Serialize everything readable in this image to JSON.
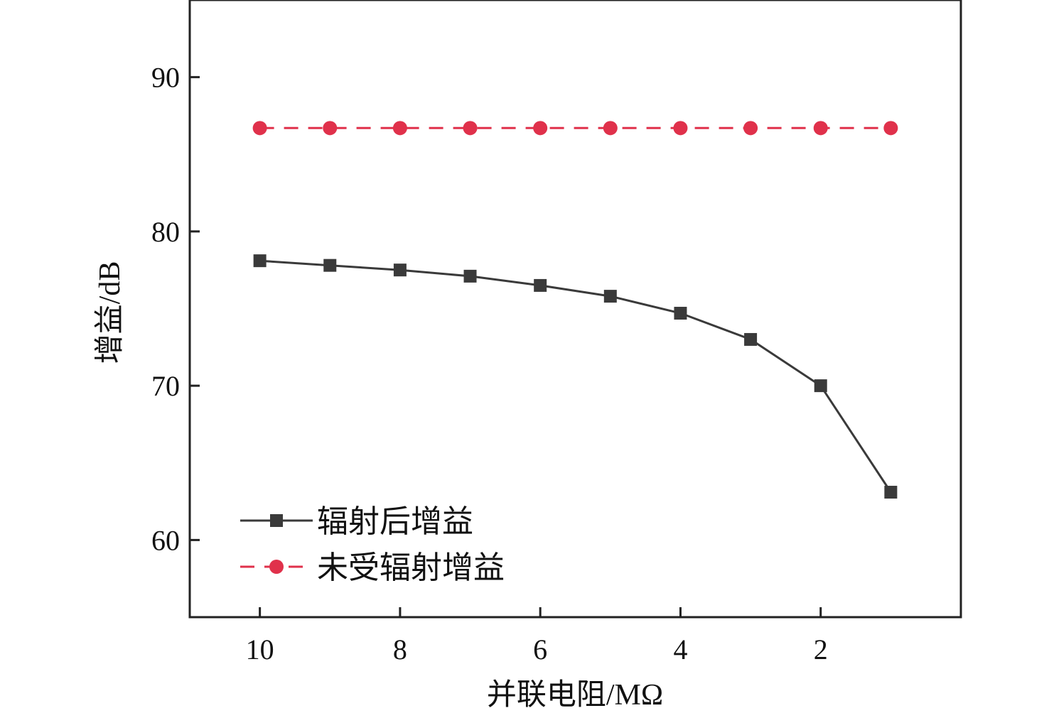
{
  "chart_data": {
    "type": "line",
    "title": "",
    "xlabel": "并联电阻/MΩ",
    "ylabel": "增益/dB",
    "x": [
      10,
      9,
      8,
      7,
      6,
      5,
      4,
      3,
      2,
      1
    ],
    "xlim": [
      11,
      0
    ],
    "ylim": [
      55,
      95
    ],
    "xticks": [
      10,
      8,
      6,
      4,
      2
    ],
    "yticks": [
      60,
      70,
      80,
      90
    ],
    "x_reversed": true,
    "grid": false,
    "legend_position": "bottom-left",
    "series": [
      {
        "name": "辐射后增益",
        "values": [
          78.1,
          77.8,
          77.5,
          77.1,
          76.5,
          75.8,
          74.7,
          73.0,
          70.0,
          63.1
        ],
        "color": "#3a3a3a",
        "marker": "square",
        "line_style": "solid"
      },
      {
        "name": "未受辐射增益",
        "values": [
          86.7,
          86.7,
          86.7,
          86.7,
          86.7,
          86.7,
          86.7,
          86.7,
          86.7,
          86.7
        ],
        "color": "#e0314b",
        "marker": "circle",
        "line_style": "dashed"
      }
    ]
  }
}
